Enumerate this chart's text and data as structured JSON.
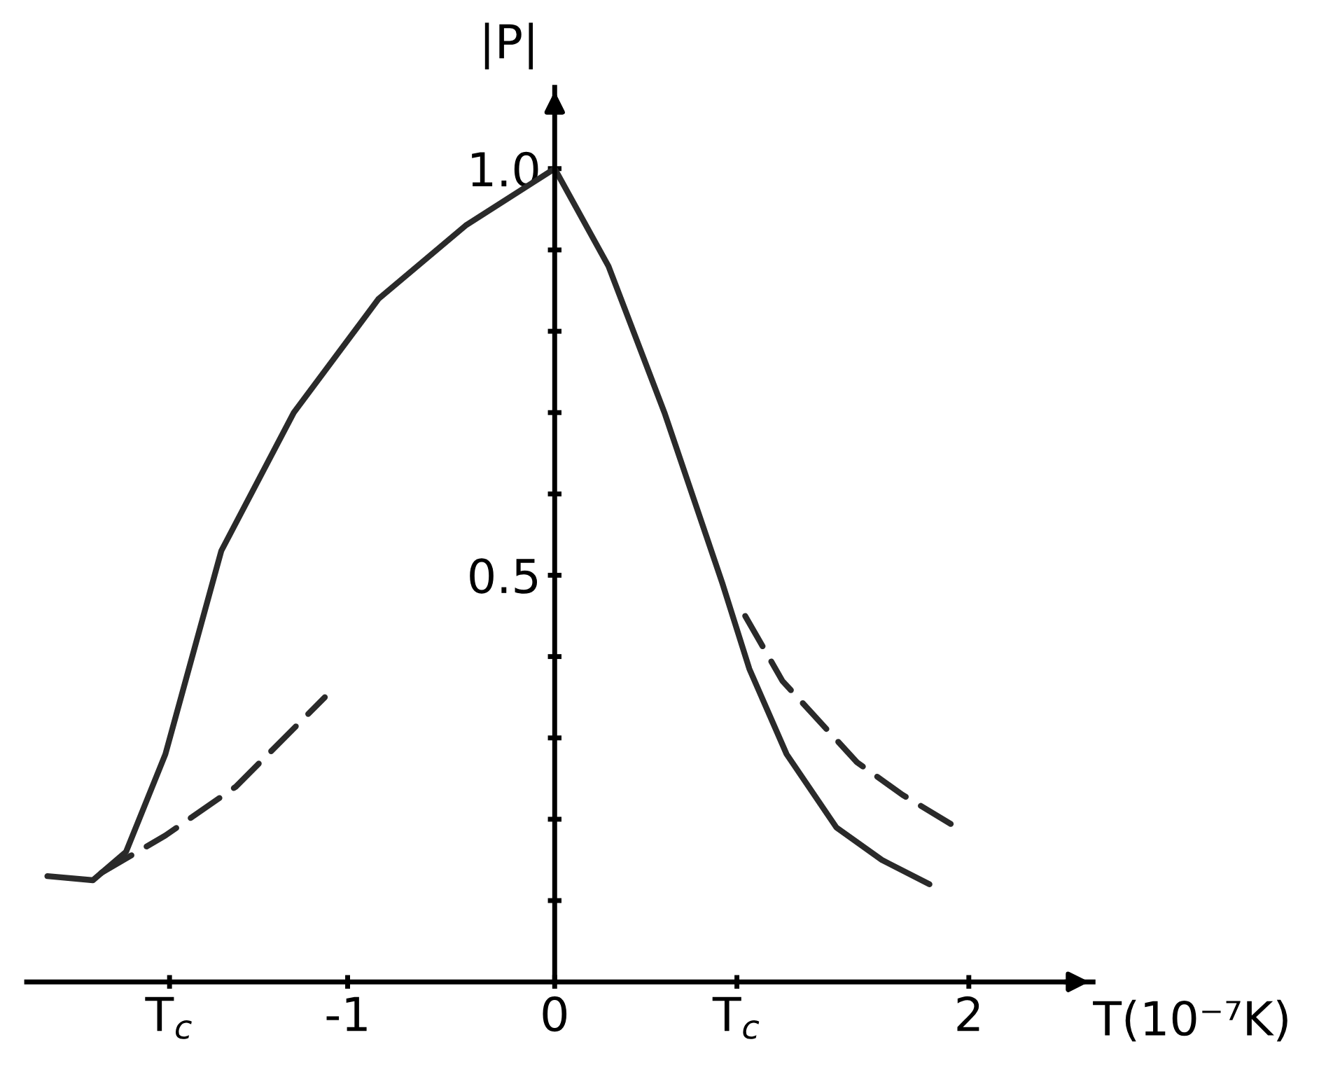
{
  "chart_data": {
    "type": "line",
    "xlabel": "T(10⁻⁷K)",
    "ylabel": "|P|",
    "xlim": [
      -2.55,
      2.6
    ],
    "ylim": [
      0,
      1.1
    ],
    "xticks": [
      {
        "value": -1.86,
        "label": "T$_{c}$"
      },
      -1,
      0,
      {
        "value": 0.88,
        "label": "T$_{c}$"
      },
      2
    ],
    "yticks": [
      {
        "value": 0.1,
        "label": null
      },
      {
        "value": 0.2,
        "label": null
      },
      {
        "value": 0.3,
        "label": null
      },
      {
        "value": 0.4,
        "label": null
      },
      0.5,
      {
        "value": 0.6,
        "label": null
      },
      {
        "value": 0.7,
        "label": null
      },
      {
        "value": 0.8,
        "label": null
      },
      {
        "value": 0.9,
        "label": null
      },
      {
        "value": 1.0,
        "label": "1.0"
      }
    ],
    "grid": false,
    "legend": false,
    "marker": "none",
    "series": [
      {
        "color": "#2a2a2a",
        "line_style": "solid",
        "x": [
          -2.45,
          -2.23,
          -2.07,
          -1.88,
          -1.61,
          -1.26,
          -0.85,
          -0.43,
          0,
          0.26,
          0.53,
          0.81,
          0.94,
          1.12,
          1.36,
          1.58,
          1.81
        ],
        "values": [
          0.13,
          0.125,
          0.16,
          0.28,
          0.53,
          0.7,
          0.84,
          0.93,
          1.0,
          0.88,
          0.7,
          0.49,
          0.385,
          0.28,
          0.19,
          0.15,
          0.12
        ]
      },
      {
        "color": "#2a2a2a",
        "line_style": "dashed",
        "x": [
          -2.19,
          -1.88,
          -1.54,
          -1.11
        ],
        "values": [
          0.134,
          0.18,
          0.24,
          0.35
        ]
      },
      {
        "color": "#2a2a2a",
        "line_style": "dashed",
        "x": [
          0.92,
          1.1,
          1.46,
          1.68,
          1.94
        ],
        "values": [
          0.45,
          0.37,
          0.27,
          0.23,
          0.19
        ]
      }
    ]
  }
}
